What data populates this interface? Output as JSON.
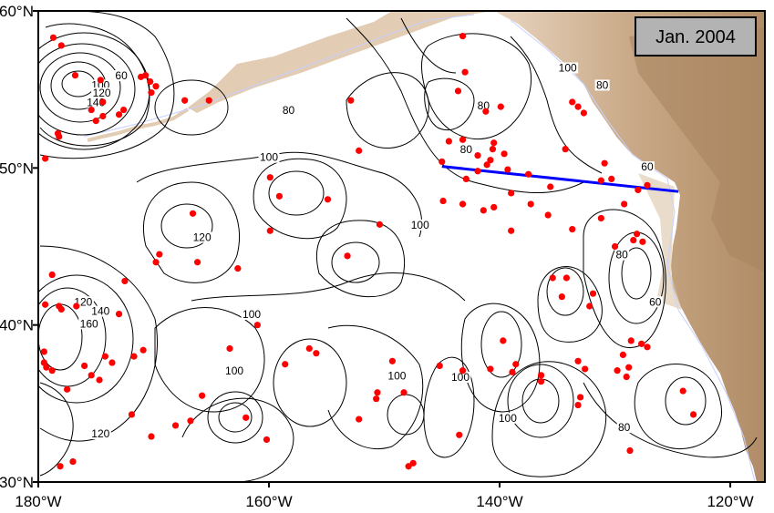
{
  "map": {
    "date_label": "Jan. 2004",
    "lon_range": [
      -180,
      -117
    ],
    "lat_range": [
      30,
      60
    ],
    "y_ticks": [
      {
        "lat": 60,
        "label": "60°N"
      },
      {
        "lat": 50,
        "label": "50°N"
      },
      {
        "lat": 40,
        "label": "40°N"
      },
      {
        "lat": 30,
        "label": "30°N"
      }
    ],
    "x_ticks": [
      {
        "lon": -180,
        "label": "180°W"
      },
      {
        "lon": -160,
        "label": "160°W"
      },
      {
        "lon": -140,
        "label": "140°W"
      },
      {
        "lon": -120,
        "label": "120°W"
      }
    ],
    "contour_labels": [
      {
        "text": "60",
        "lon": -172.8,
        "lat": 55.7
      },
      {
        "text": "100",
        "lon": -174.6,
        "lat": 55.1
      },
      {
        "text": "120",
        "lon": -174.5,
        "lat": 54.6
      },
      {
        "text": "140",
        "lon": -175.0,
        "lat": 54.0
      },
      {
        "text": "80",
        "lon": -158.3,
        "lat": 53.5
      },
      {
        "text": "100",
        "lon": -160.0,
        "lat": 50.5
      },
      {
        "text": "120",
        "lon": -165.8,
        "lat": 45.4
      },
      {
        "text": "100",
        "lon": -146.9,
        "lat": 46.2
      },
      {
        "text": "80",
        "lon": -141.4,
        "lat": 53.8
      },
      {
        "text": "80",
        "lon": -142.9,
        "lat": 51.0
      },
      {
        "text": "100",
        "lon": -134.1,
        "lat": 56.2
      },
      {
        "text": "80",
        "lon": -131.1,
        "lat": 55.1
      },
      {
        "text": "60",
        "lon": -127.2,
        "lat": 49.9
      },
      {
        "text": "80",
        "lon": -129.4,
        "lat": 44.3
      },
      {
        "text": "60",
        "lon": -126.5,
        "lat": 41.3
      },
      {
        "text": "100",
        "lon": -161.5,
        "lat": 40.5
      },
      {
        "text": "120",
        "lon": -176.1,
        "lat": 41.3
      },
      {
        "text": "140",
        "lon": -174.6,
        "lat": 40.7
      },
      {
        "text": "160",
        "lon": -175.6,
        "lat": 39.9
      },
      {
        "text": "100",
        "lon": -163.0,
        "lat": 36.9
      },
      {
        "text": "100",
        "lon": -148.9,
        "lat": 36.6
      },
      {
        "text": "100",
        "lon": -143.4,
        "lat": 36.5
      },
      {
        "text": "100",
        "lon": -139.3,
        "lat": 33.9
      },
      {
        "text": "120",
        "lon": -174.6,
        "lat": 32.9
      },
      {
        "text": "80",
        "lon": -129.2,
        "lat": 33.3
      }
    ],
    "transect_line": [
      {
        "lon": -145.0,
        "lat": 50.1
      },
      {
        "lon": -124.5,
        "lat": 48.5
      }
    ],
    "colors": {
      "contour": "#000000",
      "profiles": "#ff0000",
      "transect": "#0000ff",
      "land_light": "#e7d3bd",
      "land_mid": "#cdb092",
      "land_dark": "#a07c56",
      "shelf": "#c8d0ff",
      "label_box": "#b3b3b3"
    },
    "profile_points": [
      [
        -178.7,
        58.3
      ],
      [
        -178.0,
        57.8
      ],
      [
        -176.8,
        55.9
      ],
      [
        -174.6,
        55.6
      ],
      [
        -170.7,
        55.9
      ],
      [
        -170.3,
        55.5
      ],
      [
        -169.8,
        55.2
      ],
      [
        -167.3,
        54.3
      ],
      [
        -174.4,
        54.2
      ],
      [
        -175.4,
        53.7
      ],
      [
        -174.4,
        53.3
      ],
      [
        -175.0,
        53.0
      ],
      [
        -173.0,
        53.4
      ],
      [
        -172.6,
        53.7
      ],
      [
        -178.3,
        52.2
      ],
      [
        -178.2,
        52.0
      ],
      [
        -179.4,
        50.6
      ],
      [
        -152.9,
        54.3
      ],
      [
        -152.2,
        51.1
      ],
      [
        -143.6,
        54.9
      ],
      [
        -143.0,
        56.1
      ],
      [
        -143.2,
        58.4
      ],
      [
        -141.2,
        53.6
      ],
      [
        -139.9,
        53.9
      ],
      [
        -140.5,
        51.6
      ],
      [
        -140.6,
        51.2
      ],
      [
        -140.8,
        50.5
      ],
      [
        -141.9,
        50.8
      ],
      [
        -143.2,
        51.8
      ],
      [
        -144.4,
        51.7
      ],
      [
        -145.0,
        50.4
      ],
      [
        -142.9,
        49.3
      ],
      [
        -141.9,
        49.8
      ],
      [
        -141.1,
        50.2
      ],
      [
        -139.6,
        50.9
      ],
      [
        -139.3,
        49.9
      ],
      [
        -139.0,
        48.4
      ],
      [
        -137.5,
        49.6
      ],
      [
        -137.3,
        47.7
      ],
      [
        -140.5,
        47.5
      ],
      [
        -141.4,
        47.3
      ],
      [
        -143.2,
        47.7
      ],
      [
        -144.9,
        47.9
      ],
      [
        -139.0,
        46.0
      ],
      [
        -135.6,
        48.8
      ],
      [
        -135.8,
        47.0
      ],
      [
        -134.3,
        51.2
      ],
      [
        -133.7,
        54.2
      ],
      [
        -133.2,
        53.9
      ],
      [
        -132.7,
        53.5
      ],
      [
        -130.9,
        50.3
      ],
      [
        -131.2,
        49.2
      ],
      [
        -130.3,
        49.3
      ],
      [
        -128.0,
        48.6
      ],
      [
        -129.2,
        47.7
      ],
      [
        -127.2,
        48.9
      ],
      [
        -128.1,
        45.8
      ],
      [
        -128.4,
        45.4
      ],
      [
        -127.6,
        45.3
      ],
      [
        -130.0,
        45.0
      ],
      [
        -131.2,
        46.8
      ],
      [
        -133.7,
        46.1
      ],
      [
        -135.4,
        43.0
      ],
      [
        -134.2,
        43.0
      ],
      [
        -134.6,
        41.8
      ],
      [
        -132.2,
        41.2
      ],
      [
        -131.9,
        42.0
      ],
      [
        -133.2,
        37.7
      ],
      [
        -132.6,
        37.2
      ],
      [
        -129.8,
        37.1
      ],
      [
        -129.0,
        36.7
      ],
      [
        -128.6,
        39.0
      ],
      [
        -127.7,
        38.8
      ],
      [
        -127.2,
        38.6
      ],
      [
        -128.8,
        37.3
      ],
      [
        -129.3,
        38.1
      ],
      [
        -136.4,
        36.8
      ],
      [
        -136.4,
        36.4
      ],
      [
        -133.0,
        35.4
      ],
      [
        -133.2,
        34.9
      ],
      [
        -124.1,
        35.8
      ],
      [
        -123.2,
        34.3
      ],
      [
        -128.7,
        32.0
      ],
      [
        -138.6,
        37.5
      ],
      [
        -139.7,
        39.0
      ],
      [
        -145.2,
        37.4
      ],
      [
        -143.2,
        37.1
      ],
      [
        -148.3,
        35.7
      ],
      [
        -149.3,
        37.7
      ],
      [
        -150.6,
        35.7
      ],
      [
        -150.7,
        35.3
      ],
      [
        -152.2,
        34.0
      ],
      [
        -155.9,
        38.2
      ],
      [
        -158.6,
        37.5
      ],
      [
        -161.0,
        40.0
      ],
      [
        -166.2,
        44.0
      ],
      [
        -163.4,
        38.5
      ],
      [
        -162.0,
        34.1
      ],
      [
        -165.8,
        35.5
      ],
      [
        -166.8,
        33.9
      ],
      [
        -168.1,
        33.6
      ],
      [
        -171.9,
        34.3
      ],
      [
        -170.9,
        38.4
      ],
      [
        -171.7,
        38.0
      ],
      [
        -169.5,
        44.5
      ],
      [
        -169.8,
        44.0
      ],
      [
        -166.6,
        47.1
      ],
      [
        -162.7,
        43.6
      ],
      [
        -159.9,
        46.0
      ],
      [
        -159.1,
        48.2
      ],
      [
        -159.9,
        49.4
      ],
      [
        -154.9,
        48.0
      ],
      [
        -150.4,
        46.4
      ],
      [
        -153.2,
        44.4
      ],
      [
        -156.5,
        38.5
      ],
      [
        -147.5,
        31.2
      ],
      [
        -147.9,
        31.0
      ],
      [
        -143.5,
        33.0
      ],
      [
        -140.8,
        37.2
      ],
      [
        -138.9,
        37.0
      ],
      [
        -160.2,
        32.7
      ],
      [
        -170.2,
        32.9
      ],
      [
        -176.0,
        37.4
      ],
      [
        -177.5,
        35.9
      ],
      [
        -178.1,
        31.0
      ],
      [
        -177.0,
        31.3
      ],
      [
        -179.5,
        37.6
      ],
      [
        -179.3,
        37.3
      ],
      [
        -178.8,
        37.1
      ],
      [
        -175.4,
        36.8
      ],
      [
        -174.7,
        36.5
      ],
      [
        -178.2,
        41.2
      ],
      [
        -178.8,
        43.2
      ],
      [
        -176.7,
        41.2
      ],
      [
        -179.4,
        41.3
      ],
      [
        -178.0,
        41.0
      ],
      [
        -179.5,
        38.3
      ],
      [
        -174.2,
        38.0
      ],
      [
        -173.6,
        37.6
      ],
      [
        -173.0,
        40.7
      ],
      [
        -172.5,
        42.8
      ],
      [
        -170.2,
        54.8
      ],
      [
        -171.1,
        55.8
      ],
      [
        -165.2,
        54.3
      ]
    ]
  }
}
